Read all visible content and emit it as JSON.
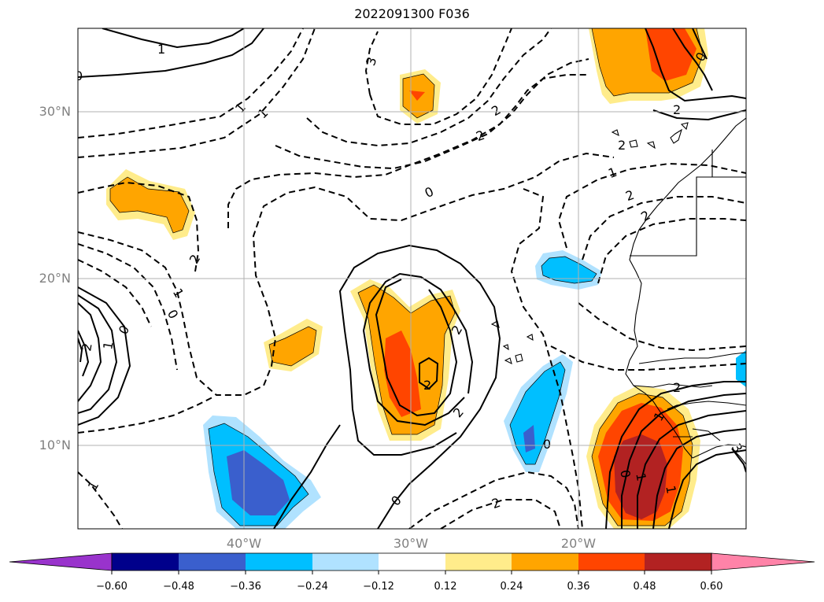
{
  "title": "2022091300 F036",
  "lat_labels": [
    {
      "lat": 30,
      "text": "30°N"
    },
    {
      "lat": 20,
      "text": "20°N"
    },
    {
      "lat": 10,
      "text": "10°N"
    }
  ],
  "lon_labels": [
    {
      "lon": -40,
      "text": "40°W"
    },
    {
      "lon": -30,
      "text": "30°W"
    },
    {
      "lon": -20,
      "text": "20°W"
    }
  ],
  "colorbar": {
    "colors": [
      "#9933cc",
      "#00008b",
      "#3a5fcd",
      "#00bfff",
      "#b0e2ff",
      "#ffffff",
      "#ffec8b",
      "#ffa500",
      "#ff4500",
      "#b22222",
      "#ff83a8"
    ],
    "ticks": [
      "−0.60",
      "−0.48",
      "−0.36",
      "−0.24",
      "−0.12",
      "0.12",
      "0.24",
      "0.36",
      "0.48",
      "0.60"
    ]
  },
  "contour_labels": [
    "1",
    "3",
    "0",
    "1",
    "2",
    "2",
    "1",
    "2",
    "2",
    "0",
    "1",
    "2",
    "2",
    "0",
    "1",
    "0",
    "2",
    "1",
    "2",
    "2",
    "0",
    "1",
    "0",
    "2",
    "2",
    "1",
    "0",
    "1",
    "1",
    "2",
    "2",
    "3",
    "0"
  ],
  "chart_data": {
    "type": "heatmap",
    "title": "2022091300 F036",
    "lon_range": [
      -50,
      -10
    ],
    "lat_range": [
      5,
      35
    ],
    "grid": true,
    "colorbar_levels": [
      -0.6,
      -0.48,
      -0.36,
      -0.24,
      -0.12,
      0.12,
      0.24,
      0.36,
      0.48,
      0.6
    ],
    "colorbar_extend": "both",
    "features": "black contours (solid positive, dashed negative) over shaded field; coastlines of West Africa and Canary/Cape Verde Islands"
  }
}
